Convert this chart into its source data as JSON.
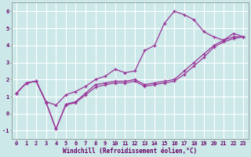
{
  "xlabel": "Windchill (Refroidissement éolien,°C)",
  "bg_color": "#cce8e8",
  "line_color": "#993399",
  "grid_color": "#ffffff",
  "xlim": [
    -0.5,
    23.5
  ],
  "ylim": [
    -1.5,
    6.5
  ],
  "yticks": [
    -1,
    0,
    1,
    2,
    3,
    4,
    5,
    6
  ],
  "xticks": [
    0,
    1,
    2,
    3,
    4,
    5,
    6,
    7,
    8,
    9,
    10,
    11,
    12,
    13,
    14,
    15,
    16,
    17,
    18,
    19,
    20,
    21,
    22,
    23
  ],
  "series1_x": [
    0,
    1,
    2,
    3,
    4,
    5,
    6,
    7,
    8,
    9,
    10,
    11,
    12,
    13,
    14,
    15,
    16,
    17,
    18,
    19,
    20,
    21,
    22,
    23
  ],
  "series1_y": [
    1.2,
    1.8,
    1.9,
    0.7,
    0.5,
    1.1,
    1.3,
    1.6,
    2.0,
    2.2,
    2.6,
    2.4,
    2.5,
    3.7,
    4.0,
    5.3,
    6.0,
    5.8,
    5.5,
    4.8,
    4.5,
    4.3,
    4.7,
    4.5
  ],
  "series2_x": [
    0,
    1,
    2,
    3,
    4,
    5,
    6,
    7,
    8,
    9,
    10,
    11,
    12,
    13,
    14,
    15,
    16,
    17,
    18,
    19,
    20,
    21,
    22,
    23
  ],
  "series2_y": [
    1.2,
    1.8,
    1.9,
    0.65,
    -0.9,
    0.55,
    0.7,
    1.2,
    1.7,
    1.8,
    1.9,
    1.9,
    2.0,
    1.7,
    1.8,
    1.9,
    2.0,
    2.5,
    3.0,
    3.5,
    4.0,
    4.3,
    4.5,
    4.5
  ],
  "series3_x": [
    0,
    1,
    2,
    3,
    4,
    5,
    6,
    7,
    8,
    9,
    10,
    11,
    12,
    13,
    14,
    15,
    16,
    17,
    18,
    19,
    20,
    21,
    22,
    23
  ],
  "series3_y": [
    1.2,
    1.8,
    1.9,
    0.65,
    -0.9,
    0.5,
    0.65,
    1.1,
    1.55,
    1.7,
    1.8,
    1.8,
    1.9,
    1.6,
    1.7,
    1.8,
    1.9,
    2.3,
    2.8,
    3.3,
    3.9,
    4.2,
    4.4,
    4.5
  ],
  "tick_fontsize": 5.0,
  "xlabel_fontsize": 5.5
}
